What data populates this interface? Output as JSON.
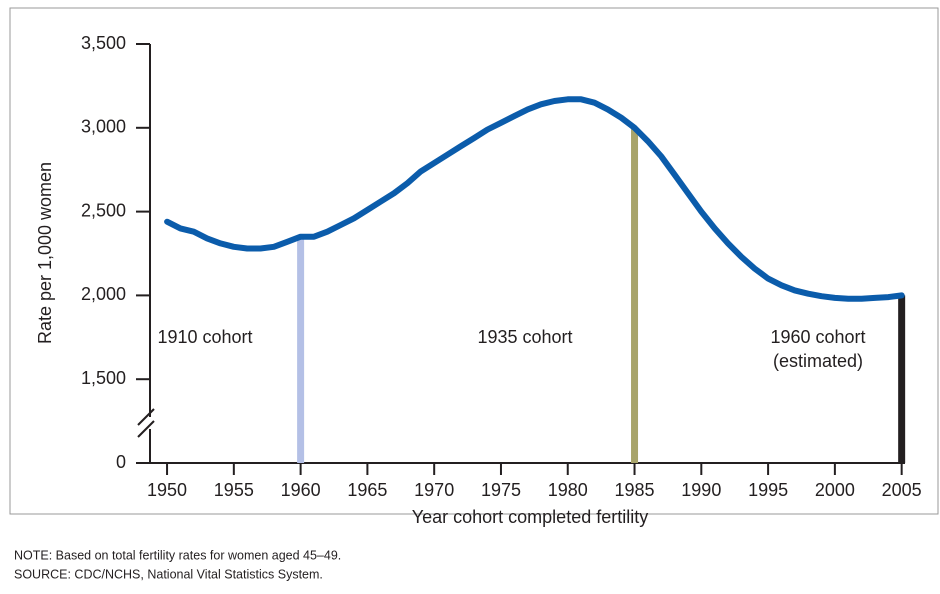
{
  "chart_data": {
    "type": "line",
    "ylabel": "Rate per 1,000 women",
    "xlabel": "Year cohort completed fertility",
    "xlim": [
      1947.75,
      2005.25
    ],
    "xticks": [
      1950,
      1955,
      1960,
      1965,
      1970,
      1975,
      1980,
      1985,
      1990,
      1995,
      2000,
      2005
    ],
    "ylim": [
      0,
      3500
    ],
    "ybreak": [
      0,
      1000
    ],
    "yticks": [
      0,
      {
        "value": 1500,
        "label": "1,500"
      },
      {
        "value": 2000,
        "label": "2,000"
      },
      {
        "value": 2500,
        "label": "2,500"
      },
      {
        "value": 3000,
        "label": "3,000"
      },
      {
        "value": 3500,
        "label": "3,500"
      }
    ],
    "series": [
      {
        "color": "#0b5cab",
        "x": [
          1950,
          1951,
          1952,
          1953,
          1954,
          1955,
          1956,
          1957,
          1958,
          1959,
          1960,
          1961,
          1962,
          1963,
          1964,
          1965,
          1966,
          1967,
          1968,
          1969,
          1970,
          1971,
          1972,
          1973,
          1974,
          1975,
          1976,
          1977,
          1978,
          1979,
          1980,
          1981,
          1982,
          1983,
          1984,
          1985,
          1986,
          1987,
          1988,
          1989,
          1990,
          1991,
          1992,
          1993,
          1994,
          1995,
          1996,
          1997,
          1998,
          1999,
          2000,
          2001,
          2002,
          2003,
          2004,
          2005
        ],
        "values": [
          2440,
          2400,
          2380,
          2340,
          2310,
          2290,
          2280,
          2280,
          2290,
          2320,
          2350,
          2350,
          2380,
          2420,
          2460,
          2510,
          2560,
          2610,
          2670,
          2740,
          2790,
          2840,
          2890,
          2940,
          2990,
          3030,
          3070,
          3110,
          3140,
          3160,
          3170,
          3170,
          3150,
          3110,
          3060,
          3000,
          2920,
          2830,
          2720,
          2610,
          2500,
          2400,
          2310,
          2230,
          2160,
          2100,
          2060,
          2030,
          2010,
          1995,
          1985,
          1980,
          1980,
          1985,
          1990,
          2000
        ]
      }
    ],
    "cohort_bars": [
      {
        "x": 1960,
        "value": 2350,
        "color": "#b4c0e6"
      },
      {
        "x": 1985,
        "value": 3000,
        "color": "#a8a46a"
      },
      {
        "x": 2005,
        "value": 2000,
        "color": "#231f20"
      }
    ],
    "annotations": [
      "1910 cohort",
      "1935 cohort",
      "1960 cohort",
      "(estimated)"
    ],
    "notes": [
      "NOTE: Based on total fertility rates for women aged 45–49.",
      "SOURCE: CDC/NCHS, National Vital Statistics System."
    ]
  }
}
